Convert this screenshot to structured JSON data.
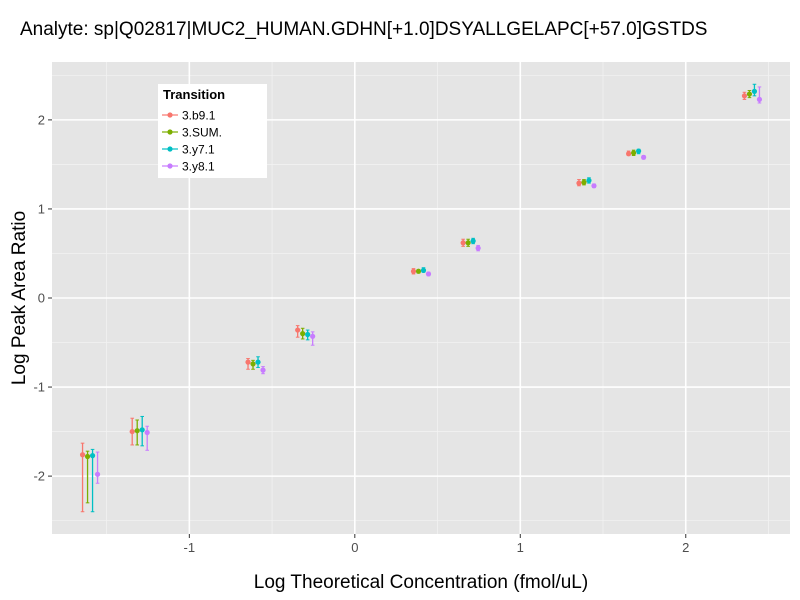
{
  "chart_data": {
    "type": "scatter",
    "title": "Analyte: sp|Q02817|MUC2_HUMAN.GDHN[+1.0]DSYALLGELAPC[+57.0]GSTDS",
    "xlabel": "Log Theoretical Concentration (fmol/uL)",
    "ylabel": "Log Peak Area Ratio",
    "xlim": [
      -1.83,
      2.63
    ],
    "ylim": [
      -2.65,
      2.65
    ],
    "x_ticks": [
      -1,
      0,
      1,
      2
    ],
    "x_tick_labels": [
      "-1",
      "0",
      "1",
      "2"
    ],
    "y_ticks": [
      -2,
      -1,
      0,
      1,
      2
    ],
    "y_tick_labels": [
      "-2",
      "-1",
      "0",
      "1",
      "2"
    ],
    "grid": true,
    "legend": {
      "title": "Transition",
      "placement": "top-left"
    },
    "x_levels": [
      -1.6,
      -1.3,
      -0.6,
      -0.3,
      0.4,
      0.7,
      1.4,
      1.7,
      2.4
    ],
    "series": [
      {
        "name": "3.b9.1",
        "color": "#F8766D",
        "values": [
          -1.76,
          -1.5,
          -0.72,
          -0.36,
          0.3,
          0.62,
          1.29,
          1.62,
          2.27
        ],
        "err_low": [
          -2.4,
          -1.65,
          -0.8,
          -0.44,
          0.27,
          0.58,
          1.26,
          1.6,
          2.23
        ],
        "err_high": [
          -1.63,
          -1.35,
          -0.68,
          -0.31,
          0.33,
          0.66,
          1.33,
          1.65,
          2.31
        ]
      },
      {
        "name": "3.SUM.",
        "color": "#7CAE00",
        "values": [
          -1.78,
          -1.49,
          -0.74,
          -0.4,
          0.3,
          0.62,
          1.3,
          1.63,
          2.29
        ],
        "err_low": [
          -2.3,
          -1.65,
          -0.8,
          -0.46,
          0.28,
          0.58,
          1.27,
          1.6,
          2.25
        ],
        "err_high": [
          -1.72,
          -1.37,
          -0.7,
          -0.34,
          0.32,
          0.66,
          1.33,
          1.66,
          2.33
        ]
      },
      {
        "name": "3.y7.1",
        "color": "#00BFC4",
        "values": [
          -1.77,
          -1.48,
          -0.72,
          -0.41,
          0.31,
          0.64,
          1.32,
          1.65,
          2.32
        ],
        "err_low": [
          -2.4,
          -1.66,
          -0.78,
          -0.47,
          0.29,
          0.61,
          1.29,
          1.62,
          2.27
        ],
        "err_high": [
          -1.7,
          -1.33,
          -0.66,
          -0.36,
          0.34,
          0.67,
          1.35,
          1.67,
          2.4
        ]
      },
      {
        "name": "3.y8.1",
        "color": "#C77CFF",
        "values": [
          -1.98,
          -1.51,
          -0.81,
          -0.43,
          0.27,
          0.56,
          1.26,
          1.58,
          2.23
        ],
        "err_low": [
          -2.08,
          -1.71,
          -0.85,
          -0.53,
          0.25,
          0.53,
          1.24,
          1.56,
          2.19
        ],
        "err_high": [
          -1.73,
          -1.44,
          -0.77,
          -0.38,
          0.29,
          0.59,
          1.28,
          1.6,
          2.37
        ]
      }
    ]
  }
}
